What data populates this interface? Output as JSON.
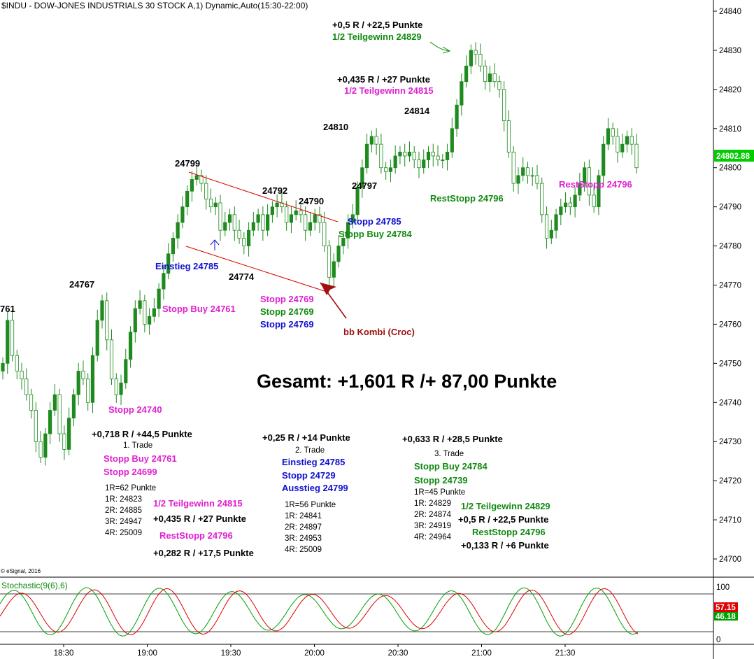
{
  "chart_data": {
    "type": "candlestick",
    "title": "$INDU - DOW-JONES INDUSTRIALS 30 STOCK A,1) Dynamic,Auto(15:30-22:00)",
    "ylim": [
      24692,
      24845
    ],
    "y_ticks": [
      24700,
      24710,
      24720,
      24730,
      24740,
      24750,
      24760,
      24770,
      24780,
      24790,
      24800,
      24810,
      24820,
      24830,
      24840
    ],
    "x_ticks": [
      "18:30",
      "19:00",
      "19:30",
      "20:00",
      "20:30",
      "21:00",
      "21:30"
    ],
    "last_price": "24802.88",
    "closes": [
      24750,
      24761,
      24752,
      24748,
      24746,
      24742,
      24738,
      24730,
      24726,
      24732,
      24738,
      24742,
      24732,
      24728,
      24736,
      24742,
      24748,
      24746,
      24740,
      24752,
      24761,
      24766,
      24756,
      24746,
      24742,
      24745,
      24751,
      24758,
      24764,
      24766,
      24760,
      24762,
      24764,
      24769,
      24773,
      24778,
      24782,
      24786,
      24790,
      24794,
      24797,
      24798,
      24796,
      24792,
      24790,
      24791,
      24784,
      24786,
      24788,
      24784,
      24782,
      24780,
      24784,
      24786,
      24788,
      24784,
      24788,
      24790,
      24791,
      24790,
      24786,
      24788,
      24789,
      24788,
      24784,
      24786,
      24788,
      24786,
      24780,
      24772,
      24776,
      24780,
      24782,
      24786,
      24788,
      24795,
      24800,
      24806,
      24808,
      24806,
      24800,
      24799,
      24800,
      24803,
      24804,
      24803,
      24804,
      24802,
      24800,
      24802,
      24804,
      24803,
      24802,
      24802,
      24804,
      24810,
      24816,
      24822,
      24826,
      24830,
      24829,
      24826,
      24822,
      24824,
      24822,
      24820,
      24812,
      24804,
      24796,
      24798,
      24800,
      24798,
      24798,
      24796,
      24788,
      24782,
      24784,
      24788,
      24790,
      24791,
      24790,
      24793,
      24796,
      24800,
      24793,
      24790,
      24798,
      24806,
      24810,
      24808,
      24804,
      24806,
      24808,
      24806,
      24800
    ],
    "stochastic": {
      "label": "Stochastic(9(6),6)",
      "k_value": "46.18",
      "d_value": "57.15",
      "levels": [
        "100",
        "0"
      ],
      "k_color": "#00a000",
      "d_color": "#e00000"
    },
    "channel_color": "#dd0000",
    "watermark": "© eSignal, 2016"
  },
  "annotations": {
    "left_label": "761",
    "p24767": "24767",
    "p24799": "24799",
    "p24792": "24792",
    "p24790": "24790",
    "p24774": "24774",
    "p24810": "24810",
    "p24814": "24814",
    "p24797": "24797",
    "einstieg": "Einstieg 24785",
    "stopp_buy_1": "Stopp Buy 24761",
    "stopp_24740": "Stopp 24740",
    "stopp_24769_m": "Stopp 24769",
    "stopp_24769_g": "Stopp 24769",
    "stopp_24769_b": "Stopp 24769",
    "bb_kombi": "bb Kombi (Croc)",
    "stopp_24785": "Stopp 24785",
    "stopp_buy_24784": "Stopp Buy 24784",
    "top_r": "+0,5 R / +22,5 Punkte",
    "top_tg": "1/2 Teilgewinn 24829",
    "mid_r": "+0,435 R / +27 Punkte",
    "mid_tg": "1/2 Teilgewinn 24815",
    "reststopp_green": "RestStopp 24796",
    "reststopp_magenta": "RestStopp 24796",
    "gesamt": "Gesamt: +1,601 R /+ 87,00 Punkte"
  },
  "trade1": {
    "result": "+0,718 R / +44,5 Punkte",
    "title": "1. Trade",
    "entry": "Stopp Buy 24761",
    "stop": "Stopp 24699",
    "r_def": "1R=62 Punkte",
    "targets": [
      "1R: 24823",
      "2R: 24885",
      "3R: 24947",
      "4R: 25009"
    ],
    "tg": "1/2 Teilgewinn 24815",
    "tg_result": "+0,435 R / +27 Punkte",
    "rest": "RestStopp 24796",
    "rest_result": "+0,282 R / +17,5 Punkte"
  },
  "trade2": {
    "result": "+0,25 R / +14 Punkte",
    "title": "2. Trade",
    "entry": "Einstieg 24785",
    "stop": "Stopp 24729",
    "exit": "Ausstieg 24799",
    "r_def": "1R=56 Punkte",
    "targets": [
      "1R: 24841",
      "2R: 24897",
      "3R: 24953",
      "4R: 25009"
    ]
  },
  "trade3": {
    "result": "+0,633 R / +28,5 Punkte",
    "title": "3. Trade",
    "entry": "Stopp Buy 24784",
    "stop": "Stopp 24739",
    "r_def": "1R=45 Punkte",
    "targets": [
      "1R: 24829",
      "2R: 24874",
      "3R: 24919",
      "4R: 24964"
    ],
    "tg": "1/2 Teilgewinn 24829",
    "tg_result": "+0,5 R / +22,5 Punkte",
    "rest": "RestStopp 24796",
    "rest_result": "+0,133 R / +6 Punkte"
  },
  "colors": {
    "magenta": "#e020d0",
    "green": "#108a10",
    "blue": "#1010d0",
    "darkred": "#a01010",
    "candle": "#1f8a1f"
  }
}
